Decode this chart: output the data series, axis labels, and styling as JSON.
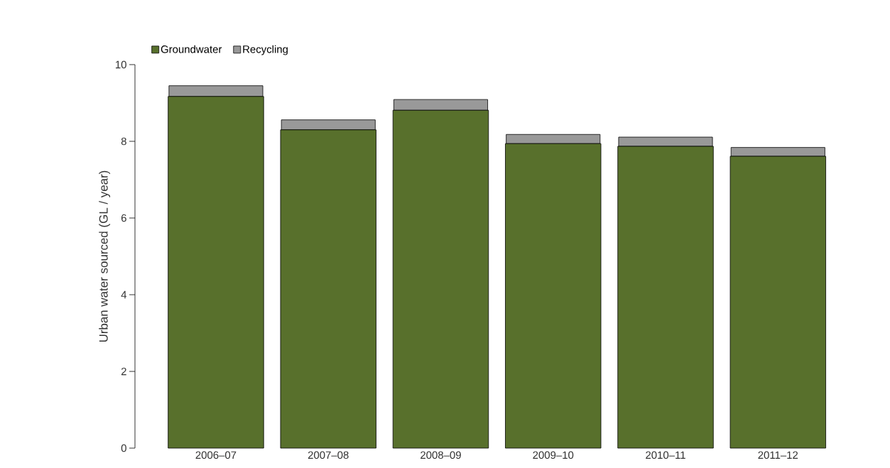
{
  "chart_data": {
    "type": "bar",
    "stacked": true,
    "ylabel": "Urban water sourced (GL / year)",
    "categories": [
      "2006–07",
      "2007–08",
      "2008–09",
      "2009–10",
      "2010–11",
      "2011–12"
    ],
    "series": [
      {
        "name": "Groundwater",
        "color": "#58702c",
        "values": [
          9.17,
          8.3,
          8.81,
          7.94,
          7.87,
          7.61
        ]
      },
      {
        "name": "Recycling",
        "color": "#999999",
        "values": [
          0.28,
          0.26,
          0.28,
          0.24,
          0.24,
          0.23
        ]
      }
    ],
    "ylim": [
      0,
      10
    ],
    "yticks": [
      0,
      2,
      4,
      6,
      8,
      10
    ],
    "legend": "top left"
  }
}
